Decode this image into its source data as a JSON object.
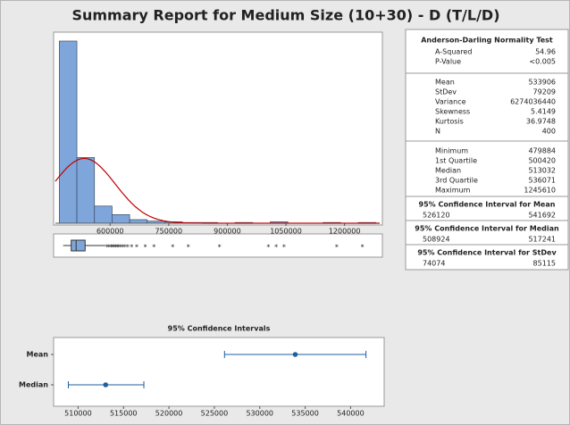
{
  "title": "Summary Report for Medium Size (10+30) - D (T/L/D)",
  "chart_data": [
    {
      "type": "histogram",
      "bins": [
        470000,
        515000,
        560000,
        605000,
        650000,
        695000,
        740000,
        785000,
        830000,
        875000,
        920000,
        965000,
        1010000,
        1055000,
        1100000,
        1145000,
        1190000,
        1235000,
        1280000
      ],
      "counts": [
        255,
        92,
        24,
        12,
        5,
        3,
        2,
        1,
        1,
        0,
        1,
        0,
        2,
        0,
        0,
        1,
        0,
        1
      ],
      "color": "#7fa6da",
      "fit_color": "#c00000",
      "xlim": [
        460000,
        1290000
      ],
      "xticks": [
        600000,
        750000,
        900000,
        1050000,
        1200000
      ],
      "ylim": [
        0,
        265
      ]
    },
    {
      "type": "box",
      "color": "#7fa6da",
      "whisker_high": 588000,
      "outliers": [
        592000,
        597000,
        602000,
        606000,
        610000,
        614000,
        618000,
        622000,
        627000,
        632000,
        638000,
        645000,
        655000,
        668000,
        690000,
        712000,
        760000,
        800000,
        880000,
        1005000,
        1025000,
        1045000,
        1180000,
        1245610
      ],
      "xlim": [
        460000,
        1290000
      ]
    },
    {
      "type": "interval",
      "title": "95% Confidence Intervals",
      "color": "#1f5f9f",
      "categories": [
        "Mean",
        "Median"
      ],
      "values": [
        533906,
        513032
      ],
      "lower": [
        526120,
        508924
      ],
      "upper": [
        541692,
        517241
      ],
      "xlim": [
        507500,
        543500
      ],
      "xticks": [
        510000,
        515000,
        520000,
        525000,
        530000,
        535000,
        540000
      ]
    }
  ],
  "stats": {
    "normality": {
      "title": "Anderson-Darling Normality Test",
      "rows": [
        [
          "A-Squared",
          54.96
        ],
        [
          "P-Value",
          "<0.005"
        ]
      ]
    },
    "moments": [
      [
        "Mean",
        533906
      ],
      [
        "StDev",
        79209
      ],
      [
        "Variance",
        6274036440
      ],
      [
        "Skewness",
        5.4149
      ],
      [
        "Kurtosis",
        36.9748
      ],
      [
        "N",
        400
      ]
    ],
    "quantiles": [
      [
        "Minimum",
        479884
      ],
      [
        "1st Quartile",
        500420
      ],
      [
        "Median",
        513032
      ],
      [
        "3rd Quartile",
        536071
      ],
      [
        "Maximum",
        1245610
      ]
    ],
    "intervals": [
      {
        "title": "95% Confidence Interval for Mean",
        "lower": 526120,
        "upper": 541692
      },
      {
        "title": "95% Confidence Interval for Median",
        "lower": 508924,
        "upper": 517241
      },
      {
        "title": "95% Confidence Interval for StDev",
        "lower": 74074,
        "upper": 85115
      }
    ]
  }
}
